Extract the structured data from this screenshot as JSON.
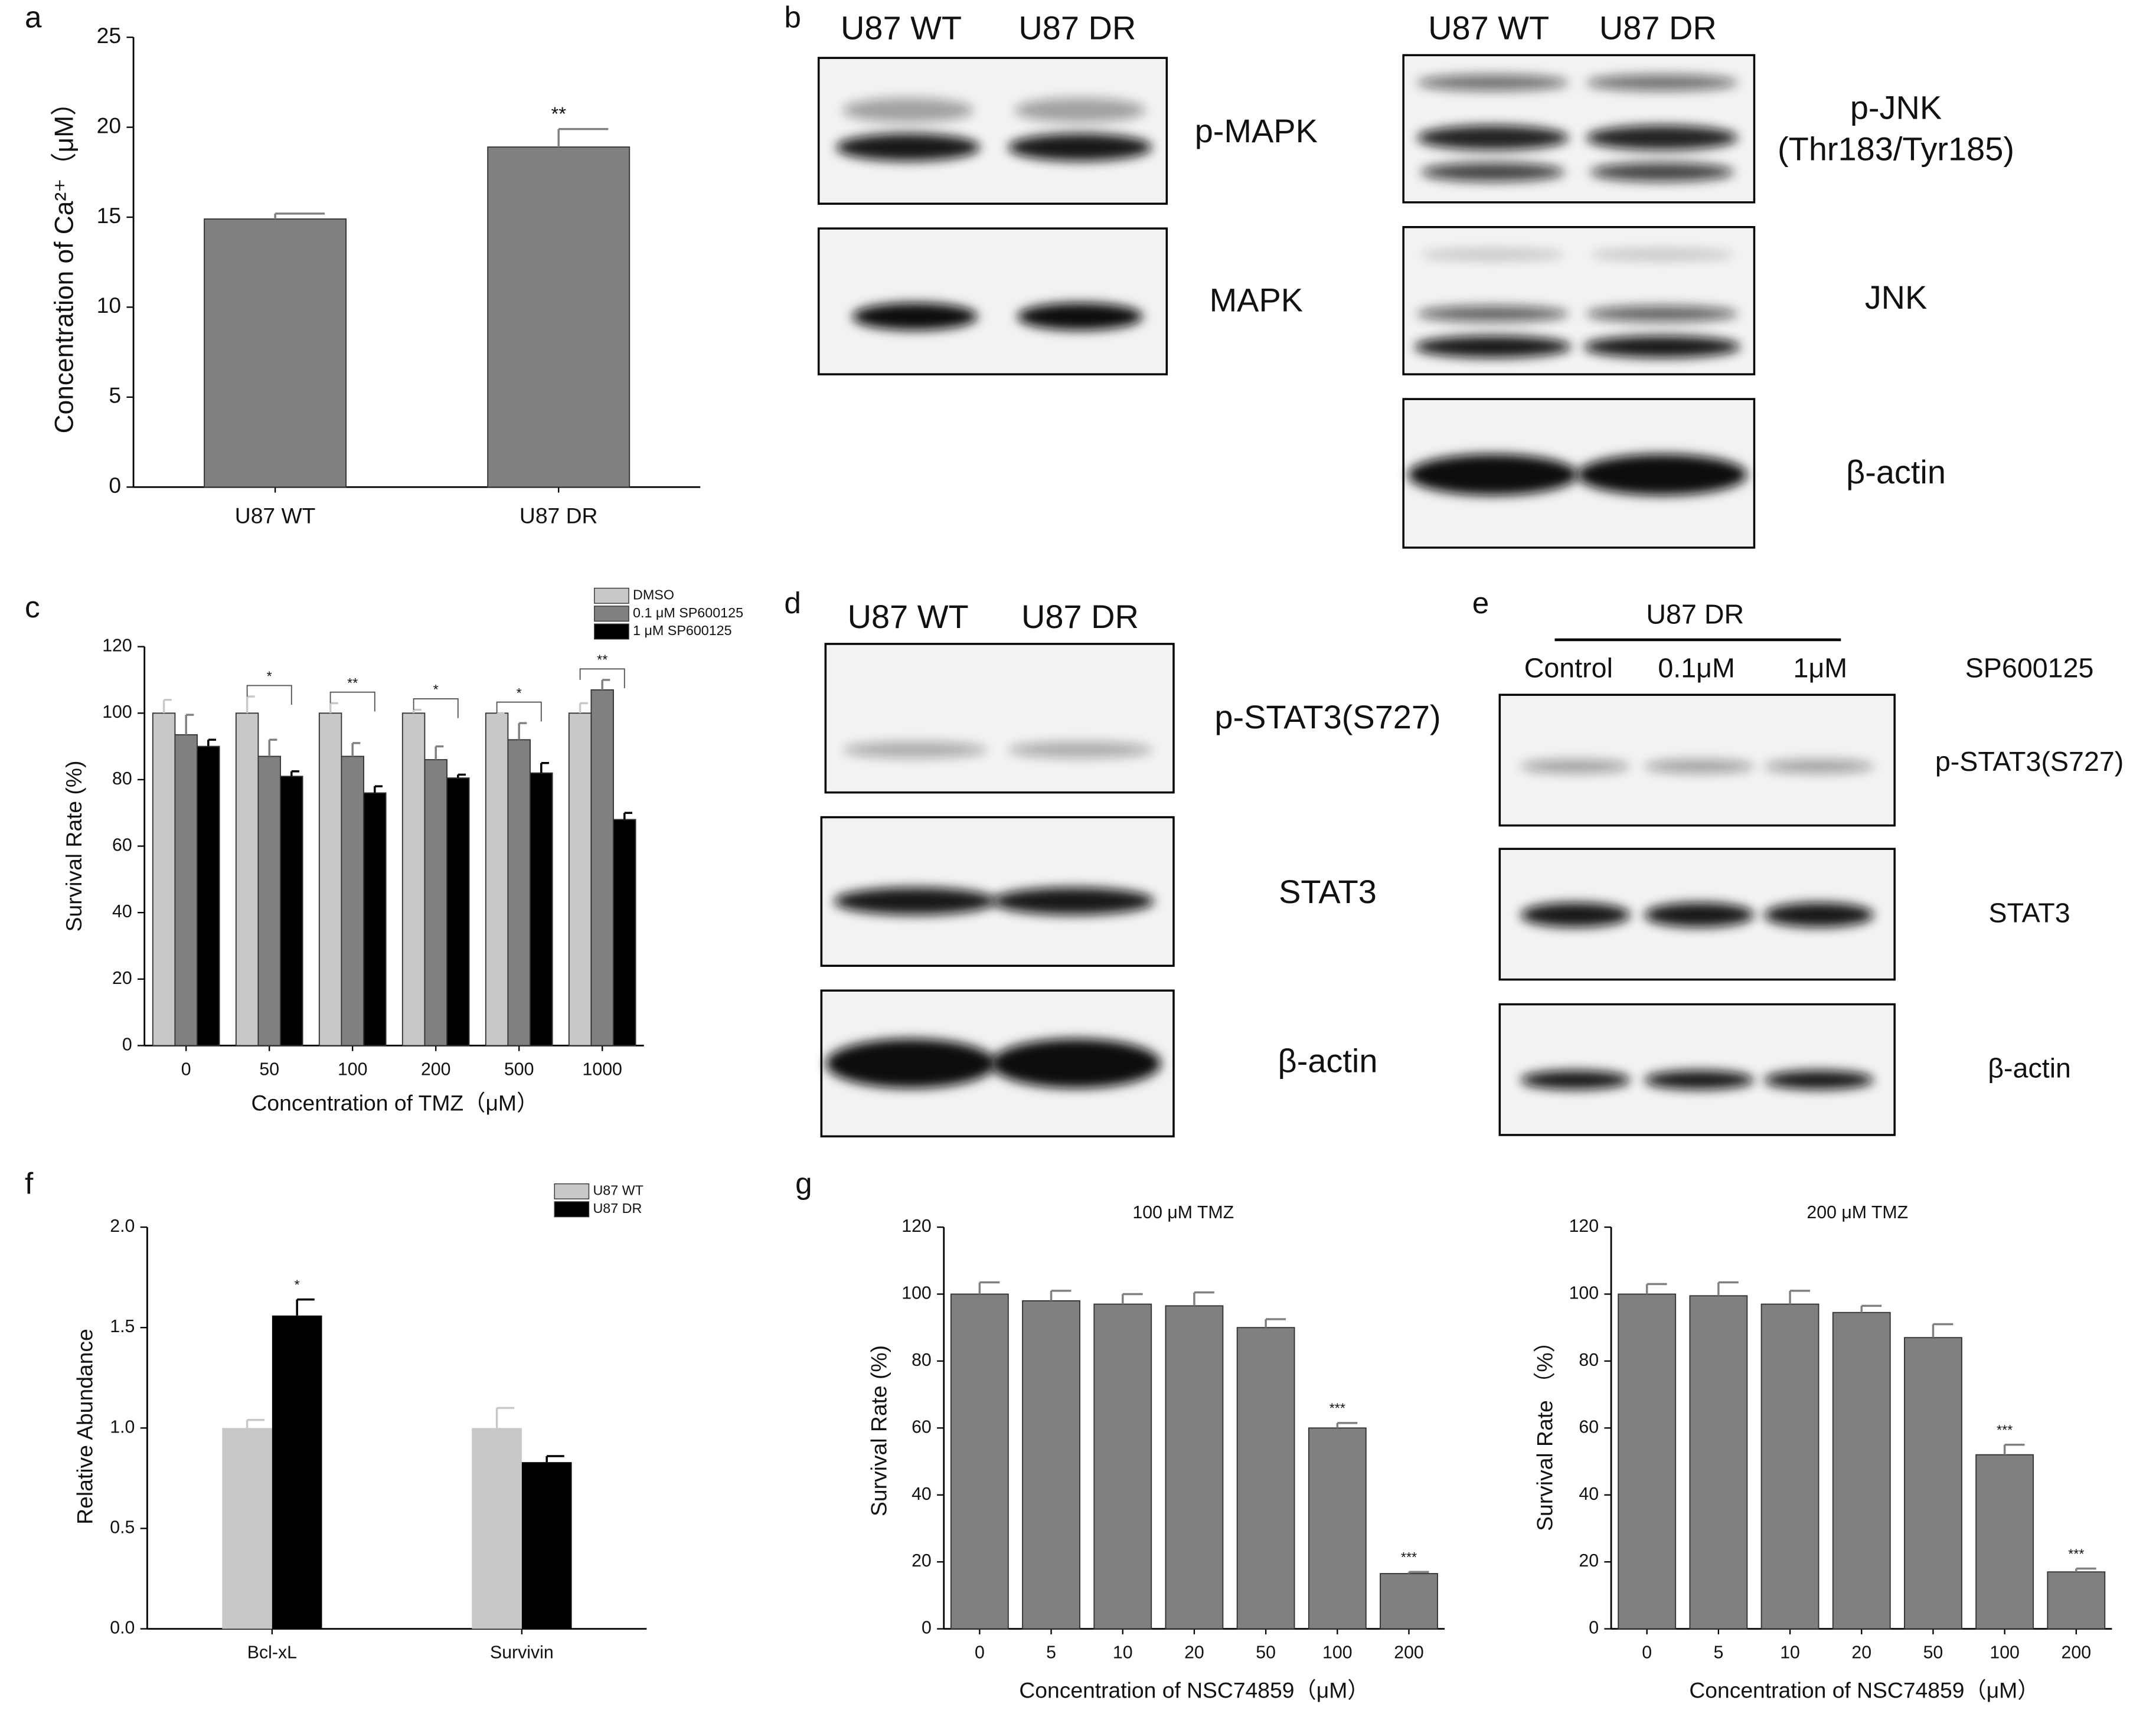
{
  "panel_labels": [
    "a",
    "b",
    "c",
    "d",
    "e",
    "f",
    "g"
  ],
  "chart_data": [
    {
      "type": "bar",
      "ylabel": "Concentration of Ca²⁺（μM）",
      "categories": [
        "U87 WT",
        "U87 DR"
      ],
      "values": [
        14.9,
        18.9
      ],
      "errors": [
        0.3,
        1.0
      ],
      "annotations": [
        null,
        "**"
      ],
      "color": "#808080",
      "ylim": [
        0,
        25
      ],
      "yticks": [
        0,
        5,
        10,
        15,
        20,
        25
      ]
    },
    {
      "type": "bar",
      "ylabel": "Survival Rate (%)",
      "xlabel": "Concentration of TMZ（μM）",
      "categories": [
        "0",
        "50",
        "100",
        "200",
        "500",
        "1000"
      ],
      "series": [
        {
          "name": "DMSO",
          "color": "#c8c8c8",
          "values": [
            100,
            100,
            100,
            100,
            100,
            100
          ],
          "errors": [
            4,
            5,
            3,
            1,
            0,
            3
          ]
        },
        {
          "name": "0.1 μM SP600125",
          "color": "#808080",
          "values": [
            93.5,
            87,
            87,
            86,
            92,
            107
          ],
          "errors": [
            6,
            5,
            4,
            4,
            5,
            3
          ]
        },
        {
          "name": "1 μM SP600125",
          "color": "#000000",
          "values": [
            90,
            81,
            76,
            80.5,
            82,
            68
          ],
          "errors": [
            2,
            1.5,
            2,
            1,
            3,
            2
          ]
        }
      ],
      "annotations": [
        null,
        "*",
        "**",
        "*",
        "*",
        "**"
      ],
      "legend": "upper right",
      "ylim": [
        0,
        120
      ],
      "yticks": [
        0,
        20,
        40,
        60,
        80,
        100,
        120
      ]
    },
    {
      "type": "bar",
      "ylabel": "Relative Abundance",
      "categories": [
        "Bcl-xL",
        "Survivin"
      ],
      "series": [
        {
          "name": "U87 WT",
          "color": "#c8c8c8",
          "values": [
            1.0,
            1.0
          ],
          "errors": [
            0.04,
            0.1
          ]
        },
        {
          "name": "U87 DR",
          "color": "#000000",
          "values": [
            1.56,
            0.83
          ],
          "errors": [
            0.08,
            0.03
          ]
        }
      ],
      "annotations": [
        "*",
        null
      ],
      "legend": "upper right",
      "ylim": [
        0,
        2
      ],
      "yticks": [
        {
          "value": 0,
          "label": "0.0"
        },
        {
          "value": 0.5,
          "label": "0.5"
        },
        {
          "value": 1,
          "label": "1.0"
        },
        {
          "value": 1.5,
          "label": "1.5"
        },
        {
          "value": 2,
          "label": "2.0"
        }
      ]
    },
    {
      "type": "bar",
      "title": "100 μM TMZ",
      "ylabel": "Survival Rate (%)",
      "xlabel": "Concentration of NSC74859（μM）",
      "categories": [
        "0",
        "5",
        "10",
        "20",
        "50",
        "100",
        "200"
      ],
      "values": [
        100,
        98,
        97,
        96.5,
        90,
        60,
        16.5
      ],
      "errors": [
        3.5,
        3,
        3,
        4,
        2.5,
        1.5,
        0.5
      ],
      "annotations": [
        null,
        null,
        null,
        null,
        null,
        "***",
        "***"
      ],
      "color": "#808080",
      "ylim": [
        0,
        120
      ],
      "yticks": [
        0,
        20,
        40,
        60,
        80,
        100,
        120
      ]
    },
    {
      "type": "bar",
      "title": "200 μM TMZ",
      "ylabel": "Survival Rate （%）",
      "xlabel": "Concentration of NSC74859（μM）",
      "categories": [
        "0",
        "5",
        "10",
        "20",
        "50",
        "100",
        "200"
      ],
      "values": [
        100,
        99.5,
        97,
        94.5,
        87,
        52,
        17
      ],
      "errors": [
        3,
        4,
        4,
        2,
        4,
        3,
        1
      ],
      "annotations": [
        null,
        null,
        null,
        null,
        null,
        "***",
        "***"
      ],
      "color": "#808080",
      "ylim": [
        0,
        120
      ],
      "yticks": [
        0,
        20,
        40,
        60,
        80,
        100,
        120
      ]
    }
  ],
  "blots": [
    {
      "lanes": [
        "U87 WT",
        "U87 DR"
      ],
      "rows": [
        [
          "p-MAPK"
        ],
        [
          "MAPK"
        ]
      ]
    },
    {
      "lanes": [
        "U87 WT",
        "U87 DR"
      ],
      "rows": [
        [
          "p-JNK",
          "(Thr183/Tyr185)"
        ],
        [
          "JNK"
        ],
        [
          "β-actin"
        ]
      ]
    },
    {
      "lanes": [
        "U87 WT",
        "U87 DR"
      ],
      "rows": [
        [
          "p-STAT3(S727)"
        ],
        [
          "STAT3"
        ],
        [
          "β-actin"
        ]
      ]
    },
    {
      "header": "U87 DR",
      "lanes": [
        "Control",
        "0.1μM",
        "1μM"
      ],
      "treatment": "SP600125",
      "rows": [
        [
          "p-STAT3(S727)"
        ],
        [
          "STAT3"
        ],
        [
          "β-actin"
        ]
      ]
    }
  ]
}
